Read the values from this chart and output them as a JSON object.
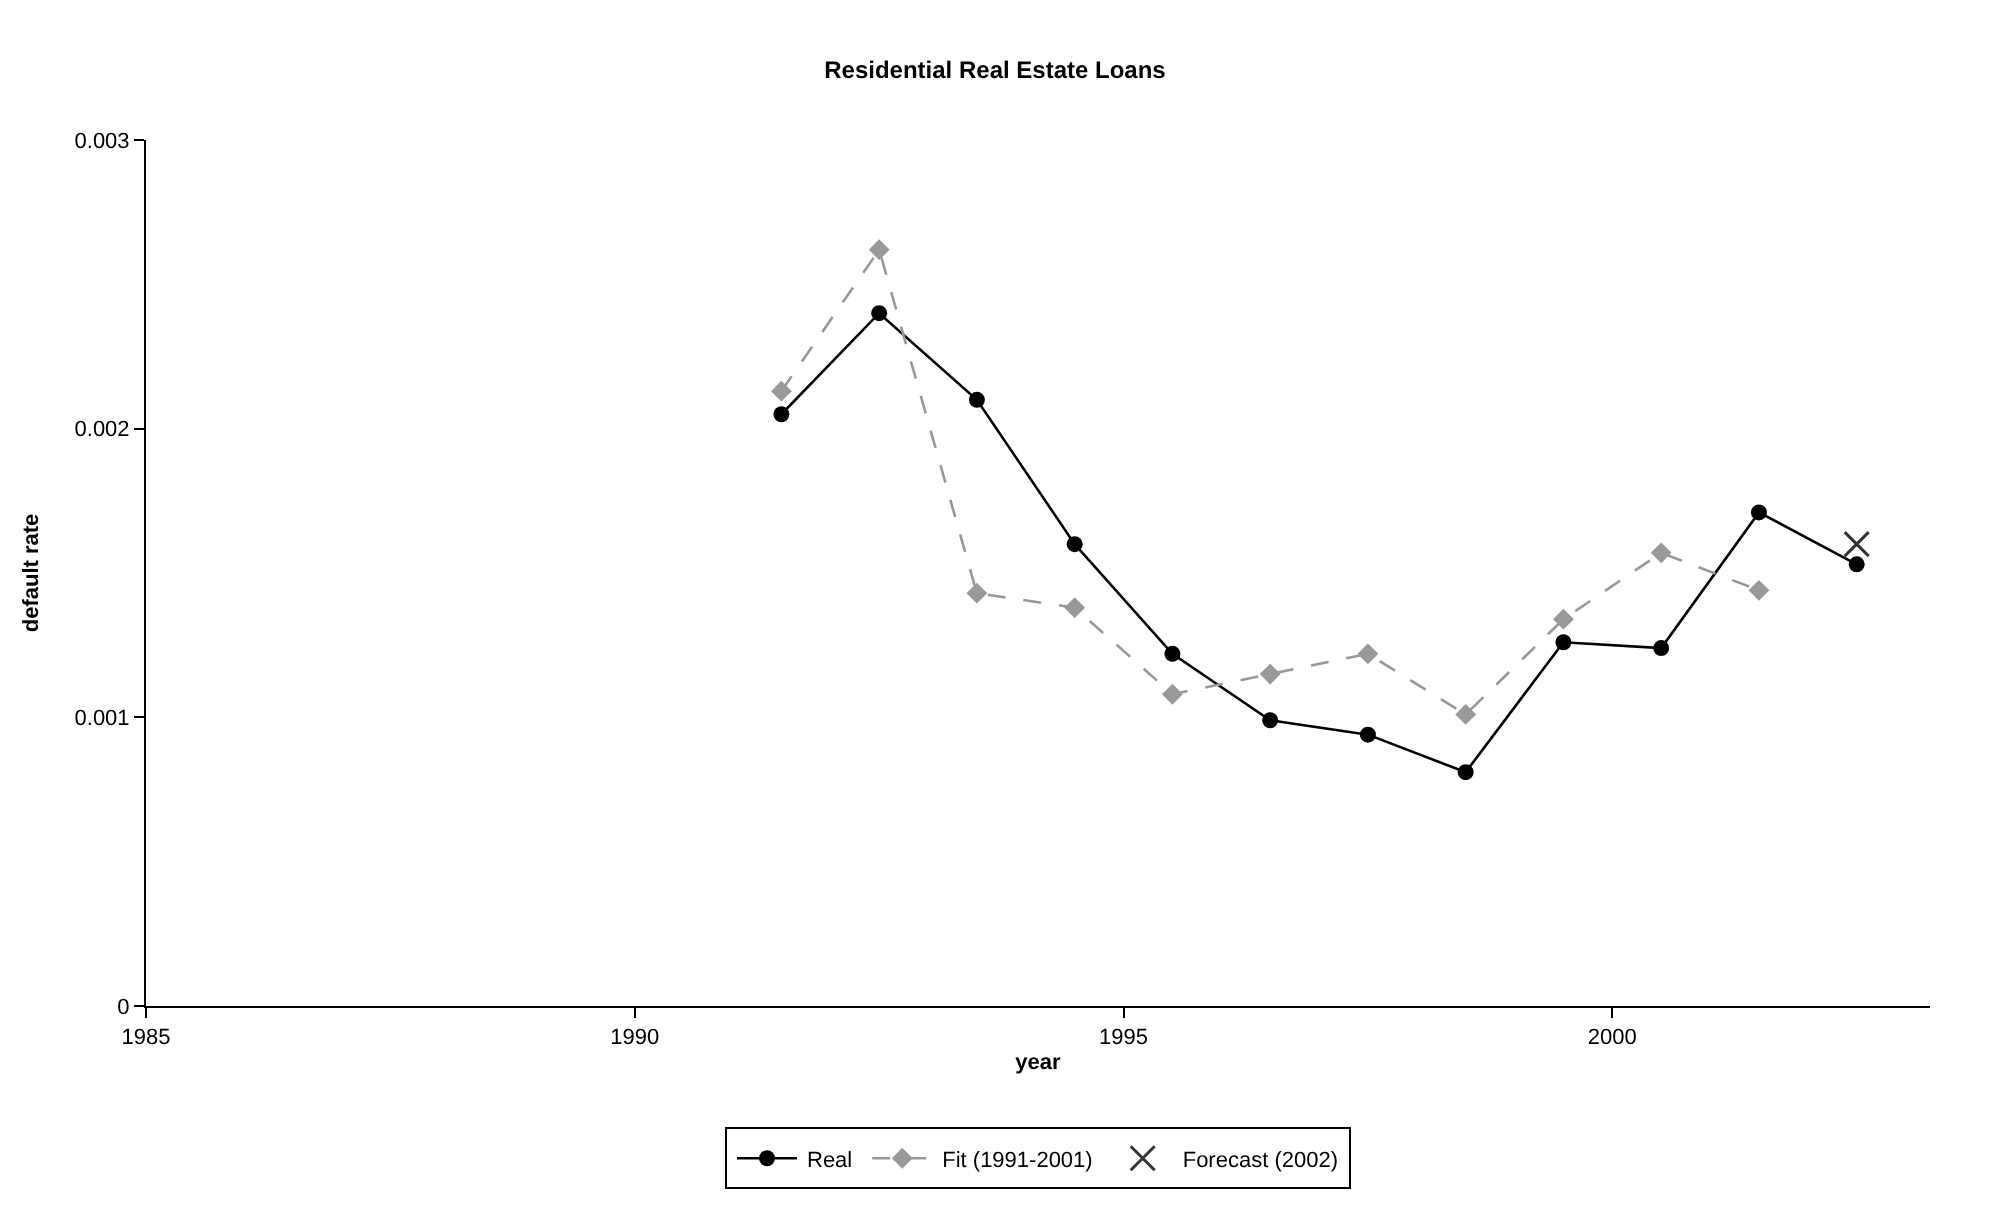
{
  "chart_data": {
    "type": "line",
    "title": "Residential Real Estate Loans",
    "xlabel": "year",
    "ylabel": "default rate",
    "xlim": [
      1985,
      2003.25
    ],
    "xticks": [
      1985,
      1990,
      1995,
      2000
    ],
    "ylim": [
      0,
      0.003
    ],
    "yticks": [
      0,
      0.001,
      0.002,
      0.003
    ],
    "legend": "bottom",
    "series": [
      {
        "name": "Real",
        "color": "#000000",
        "marker": "circle",
        "line_style": "solid",
        "x": [
          1991.5,
          1992.5,
          1993.5,
          1994.5,
          1995.5,
          1996.5,
          1997.5,
          1998.5,
          1999.5,
          2000.5,
          2001.5,
          2002.5
        ],
        "values": [
          0.00205,
          0.0024,
          0.0021,
          0.0016,
          0.00122,
          0.00099,
          0.00094,
          0.00081,
          0.00126,
          0.00124,
          0.00171,
          0.00153
        ]
      },
      {
        "name": "Fit (1991-2001)",
        "color": "#999999",
        "marker": "diamond",
        "line_style": "dashed",
        "x": [
          1991.5,
          1992.5,
          1993.5,
          1994.5,
          1995.5,
          1996.5,
          1997.5,
          1998.5,
          1999.5,
          2000.5,
          2001.5
        ],
        "values": [
          0.00213,
          0.00262,
          0.00143,
          0.00138,
          0.00108,
          0.00115,
          0.00122,
          0.00101,
          0.00134,
          0.00157,
          0.00144
        ]
      },
      {
        "name": "Forecast (2002)",
        "type": "scatter",
        "color": "#333333",
        "marker": "cross",
        "x": [
          2002.5
        ],
        "values": [
          0.0016
        ]
      }
    ]
  }
}
